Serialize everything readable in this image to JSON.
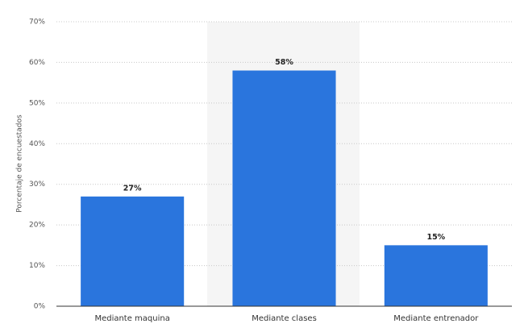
{
  "chart_data": {
    "type": "bar",
    "y_label": "Porcentaje de encuestados",
    "categories": [
      "Mediante maquina",
      "Mediante clases",
      "Mediante entrenador"
    ],
    "values": [
      27,
      58,
      15
    ],
    "value_labels": [
      "27%",
      "58%",
      "15%"
    ],
    "color": "#2a75dd",
    "ylim": [
      0,
      70
    ],
    "yticks": [
      {
        "value": 0,
        "label": "0%"
      },
      {
        "value": 10,
        "label": "10%"
      },
      {
        "value": 20,
        "label": "20%"
      },
      {
        "value": 30,
        "label": "30%"
      },
      {
        "value": 40,
        "label": "40%"
      },
      {
        "value": 50,
        "label": "50%"
      },
      {
        "value": 60,
        "label": "60%"
      },
      {
        "value": 70,
        "label": "70%"
      }
    ],
    "grid": true
  }
}
